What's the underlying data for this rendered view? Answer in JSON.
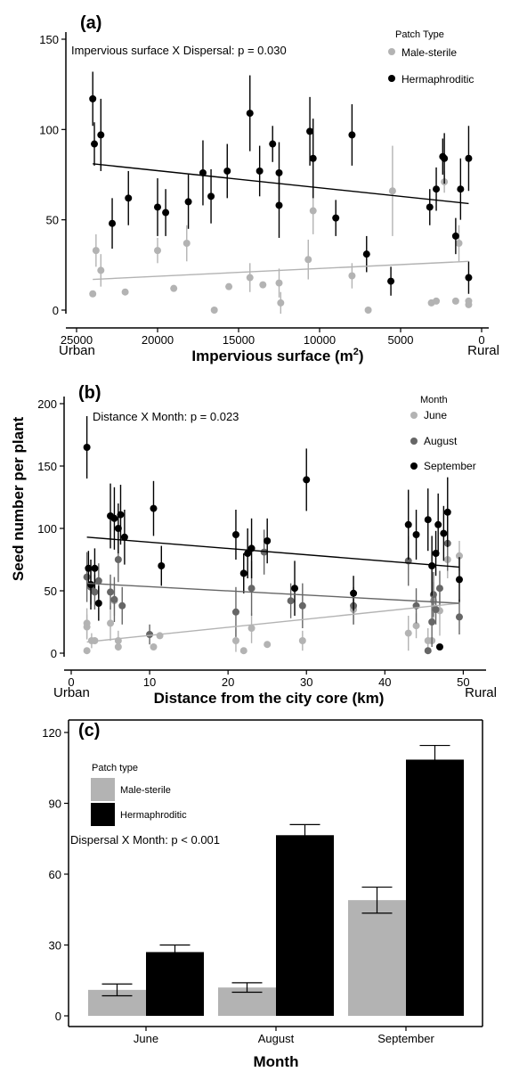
{
  "colors": {
    "male_sterile": "#b3b3b3",
    "hermaphroditic": "#000000",
    "june": "#b3b3b3",
    "august": "#666666",
    "september": "#000000"
  },
  "y_label": "Seed number per plant",
  "chart_data": [
    {
      "type": "scatter",
      "panel": "(a)",
      "annotation": "Impervious surface X Dispersal: p = 0.030",
      "xlabel": "Impervious surface (m",
      "xlabel_sup": "2",
      "xlabel_close": ")",
      "x_end_labels": {
        "left": "Urban",
        "right": "Rural"
      },
      "xlim": [
        25000,
        0
      ],
      "xticks": [
        25000,
        20000,
        15000,
        10000,
        5000,
        0
      ],
      "ylim": [
        0,
        150
      ],
      "yticks": [
        0,
        50,
        100,
        150
      ],
      "legend": {
        "title": "Patch Type",
        "entries": [
          "Male-sterile",
          "Hermaphroditic"
        ]
      },
      "series": [
        {
          "name": "Male-sterile",
          "color_key": "male_sterile",
          "points": [
            [
              24000,
              9
            ],
            [
              23800,
              33
            ],
            [
              23500,
              22
            ],
            [
              22000,
              10
            ],
            [
              20000,
              33
            ],
            [
              19000,
              12
            ],
            [
              18200,
              37
            ],
            [
              16500,
              0
            ],
            [
              15600,
              13
            ],
            [
              14300,
              18
            ],
            [
              13500,
              14
            ],
            [
              12500,
              15
            ],
            [
              12400,
              4
            ],
            [
              10700,
              28
            ],
            [
              10400,
              55
            ],
            [
              8000,
              19
            ],
            [
              7000,
              0
            ],
            [
              5500,
              66
            ],
            [
              3100,
              4
            ],
            [
              2800,
              5
            ],
            [
              2300,
              71
            ],
            [
              1600,
              5
            ],
            [
              1400,
              37
            ],
            [
              800,
              5
            ],
            [
              800,
              3
            ]
          ],
          "errors": [
            null,
            9,
            9,
            null,
            7,
            null,
            10,
            null,
            null,
            8,
            null,
            8,
            6,
            11,
            13,
            7,
            null,
            25,
            null,
            null,
            6,
            null,
            10,
            null,
            null
          ],
          "trend": {
            "x": [
              24000,
              800
            ],
            "y": [
              17,
              27
            ]
          }
        },
        {
          "name": "Hermaphroditic",
          "color_key": "hermaphroditic",
          "points": [
            [
              24000,
              117
            ],
            [
              23900,
              92
            ],
            [
              23500,
              97
            ],
            [
              22800,
              48
            ],
            [
              21800,
              62
            ],
            [
              20000,
              57
            ],
            [
              19500,
              54
            ],
            [
              18100,
              60
            ],
            [
              17200,
              76
            ],
            [
              16700,
              63
            ],
            [
              15700,
              77
            ],
            [
              14300,
              109
            ],
            [
              13700,
              77
            ],
            [
              12900,
              92
            ],
            [
              12500,
              76
            ],
            [
              12500,
              58
            ],
            [
              10600,
              99
            ],
            [
              10400,
              84
            ],
            [
              9000,
              51
            ],
            [
              8000,
              97
            ],
            [
              7100,
              31
            ],
            [
              5600,
              16
            ],
            [
              3200,
              57
            ],
            [
              2800,
              67
            ],
            [
              2400,
              85
            ],
            [
              2300,
              84
            ],
            [
              1600,
              41
            ],
            [
              1300,
              67
            ],
            [
              800,
              84
            ],
            [
              800,
              18
            ]
          ],
          "errors": [
            15,
            12,
            20,
            14,
            15,
            16,
            13,
            15,
            18,
            15,
            15,
            21,
            14,
            10,
            17,
            18,
            19,
            22,
            10,
            17,
            10,
            8,
            10,
            12,
            10,
            14,
            10,
            17,
            18,
            9
          ],
          "trend": {
            "x": [
              24000,
              800
            ],
            "y": [
              81,
              59
            ]
          }
        }
      ]
    },
    {
      "type": "scatter",
      "panel": "(b)",
      "annotation": "Distance X Month: p = 0.023",
      "xlabel": "Distance from the city core (km)",
      "x_end_labels": {
        "left": "Urban",
        "right": "Rural"
      },
      "xlim": [
        0,
        52
      ],
      "xticks": [
        0,
        10,
        20,
        30,
        40,
        50
      ],
      "ylim": [
        0,
        200
      ],
      "yticks": [
        0,
        50,
        100,
        150,
        200
      ],
      "legend": {
        "title": "Month",
        "entries": [
          "June",
          "August",
          "September"
        ]
      },
      "series": [
        {
          "name": "June",
          "color_key": "june",
          "points": [
            [
              2,
              24
            ],
            [
              2,
              21
            ],
            [
              2,
              2
            ],
            [
              2.6,
              10
            ],
            [
              3,
              10
            ],
            [
              5,
              24
            ],
            [
              5.5,
              42
            ],
            [
              6,
              10
            ],
            [
              6,
              5
            ],
            [
              10.5,
              5
            ],
            [
              11.3,
              14
            ],
            [
              21,
              10
            ],
            [
              22,
              2
            ],
            [
              23,
              20
            ],
            [
              25,
              7
            ],
            [
              29.5,
              10
            ],
            [
              36,
              35
            ],
            [
              43,
              16
            ],
            [
              44,
              22
            ],
            [
              45.5,
              10
            ],
            [
              46,
              10
            ],
            [
              46.2,
              42
            ],
            [
              47,
              34
            ],
            [
              48,
              75
            ],
            [
              49.5,
              78
            ]
          ],
          "errors": [
            12,
            10,
            null,
            6,
            null,
            14,
            12,
            8,
            null,
            null,
            null,
            9,
            null,
            12,
            null,
            8,
            12,
            14,
            10,
            10,
            null,
            15,
            20,
            15,
            12
          ]
        },
        {
          "name": "August",
          "color_key": "august",
          "points": [
            [
              2,
              61
            ],
            [
              2.5,
              53
            ],
            [
              3,
              49
            ],
            [
              3.5,
              58
            ],
            [
              5,
              49
            ],
            [
              5.5,
              43
            ],
            [
              6,
              75
            ],
            [
              6.5,
              38
            ],
            [
              10,
              15
            ],
            [
              21,
              33
            ],
            [
              22,
              64
            ],
            [
              23,
              52
            ],
            [
              24.6,
              81
            ],
            [
              28,
              42
            ],
            [
              29.5,
              38
            ],
            [
              36,
              38
            ],
            [
              43,
              74
            ],
            [
              44,
              38
            ],
            [
              45.5,
              2
            ],
            [
              46,
              25
            ],
            [
              46.2,
              47
            ],
            [
              46.5,
              35
            ],
            [
              47,
              52
            ],
            [
              48,
              88
            ],
            [
              49.5,
              29
            ]
          ],
          "errors": [
            20,
            14,
            14,
            14,
            14,
            18,
            18,
            15,
            8,
            20,
            16,
            22,
            18,
            14,
            18,
            15,
            20,
            14,
            null,
            20,
            18,
            12,
            14,
            22,
            14
          ]
        },
        {
          "name": "September",
          "color_key": "september",
          "points": [
            [
              2,
              165
            ],
            [
              2.2,
              68
            ],
            [
              2.5,
              55
            ],
            [
              3,
              68
            ],
            [
              3.5,
              40
            ],
            [
              5,
              110
            ],
            [
              5.5,
              108
            ],
            [
              6,
              100
            ],
            [
              6.3,
              111
            ],
            [
              6.8,
              93
            ],
            [
              10.5,
              116
            ],
            [
              11.5,
              70
            ],
            [
              21,
              95
            ],
            [
              22,
              64
            ],
            [
              22.5,
              80
            ],
            [
              23,
              84
            ],
            [
              25,
              90
            ],
            [
              28.5,
              52
            ],
            [
              30,
              139
            ],
            [
              36,
              48
            ],
            [
              43,
              103
            ],
            [
              44,
              95
            ],
            [
              45.5,
              107
            ],
            [
              46,
              70
            ],
            [
              46.5,
              80
            ],
            [
              46.8,
              103
            ],
            [
              47,
              5
            ],
            [
              47.5,
              96
            ],
            [
              48,
              113
            ],
            [
              49.5,
              59
            ]
          ],
          "errors": [
            25,
            14,
            20,
            16,
            14,
            26,
            25,
            20,
            24,
            22,
            22,
            16,
            20,
            16,
            20,
            24,
            18,
            22,
            25,
            14,
            28,
            20,
            25,
            24,
            18,
            25,
            null,
            22,
            28,
            18
          ]
        }
      ],
      "trends": [
        {
          "series": "June",
          "x": [
            2,
            49.5
          ],
          "y": [
            9,
            40
          ]
        },
        {
          "series": "August",
          "x": [
            2,
            49.5
          ],
          "y": [
            56,
            40
          ]
        },
        {
          "series": "September",
          "x": [
            2,
            49.5
          ],
          "y": [
            93,
            69
          ]
        }
      ]
    },
    {
      "type": "bar",
      "panel": "(c)",
      "annotation": "Dispersal X Month: p < 0.001",
      "xlabel": "Month",
      "categories": [
        "June",
        "August",
        "September"
      ],
      "ylim": [
        0,
        120
      ],
      "yticks": [
        0,
        30,
        60,
        90,
        120
      ],
      "legend": {
        "title": "Patch  type",
        "entries": [
          "Male-sterile",
          "Hermaphroditic"
        ]
      },
      "series": [
        {
          "name": "Male-sterile",
          "color_key": "male_sterile",
          "values": [
            11,
            12,
            49
          ],
          "errors": [
            2.5,
            2,
            5.5
          ]
        },
        {
          "name": "Hermaphroditic",
          "color_key": "hermaphroditic",
          "values": [
            27,
            76.5,
            108.5
          ],
          "errors": [
            3,
            4.5,
            6
          ]
        }
      ]
    }
  ]
}
